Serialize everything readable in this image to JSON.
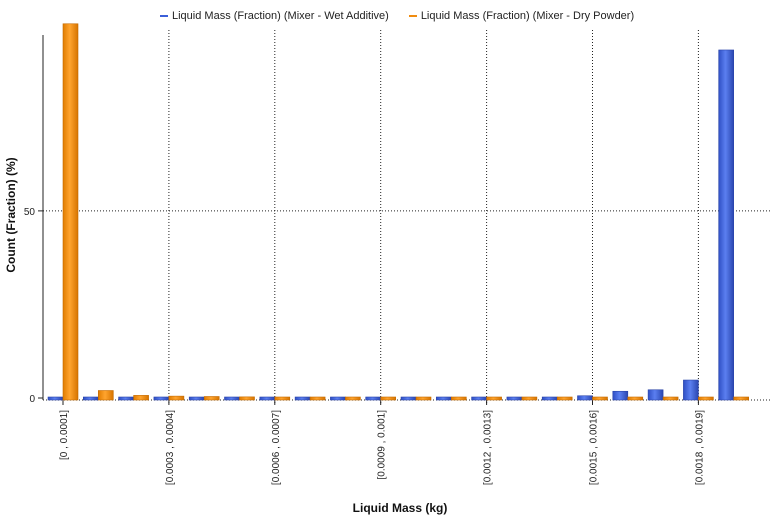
{
  "chart_data": {
    "type": "bar",
    "xlabel": "Liquid Mass (kg)",
    "ylabel": "Count  (Fraction) (%)",
    "ylim": [
      0,
      100
    ],
    "yticks": [
      0,
      50
    ],
    "grid": true,
    "legend_position": "top-center",
    "categories": [
      "[0 , 0.0001]",
      "(0.0001 , 0.0002]",
      "(0.0002 , 0.0003]",
      "[0.0003 , 0.0004]",
      "(0.0004 , 0.0005]",
      "(0.0005 , 0.0006]",
      "[0.0006 , 0.0007]",
      "(0.0007 , 0.0008]",
      "(0.0008 , 0.0009]",
      "[0.0009 , 0.001]",
      "(0.001 , 0.0011]",
      "(0.0011 , 0.0012]",
      "[0.0012 , 0.0013]",
      "(0.0013 , 0.0014]",
      "(0.0014 , 0.0015]",
      "[0.0015 , 0.0016]",
      "(0.0016 , 0.0017]",
      "(0.0017 , 0.0018]",
      "[0.0018 , 0.0019]",
      "(0.0019 , 0.002]"
    ],
    "visible_tick_labels": [
      "[0 , 0.0001]",
      "[0.0003 , 0.0004]",
      "[0.0006 , 0.0007]",
      "[0.0009 , 0.001]",
      "[0.0012 , 0.0013]",
      "[0.0015 , 0.0016]",
      "[0.0018 , 0.0019]"
    ],
    "series": [
      {
        "name": "Liquid Mass (Fraction) (Mixer - Wet Additive)",
        "color": "#3b5fd9",
        "values": [
          0.1,
          0.1,
          0.1,
          0.1,
          0.1,
          0.1,
          0.1,
          0.1,
          0.1,
          0.1,
          0.1,
          0.1,
          0.1,
          0.2,
          0.2,
          0.6,
          1.8,
          2.2,
          4.8,
          93.0
        ]
      },
      {
        "name": "Liquid Mass (Fraction) (Mixer - Dry Powder)",
        "color": "#f08c10",
        "values": [
          100.0,
          2.0,
          0.7,
          0.5,
          0.4,
          0.3,
          0.2,
          0.2,
          0.2,
          0.1,
          0.1,
          0.1,
          0.1,
          0.1,
          0.1,
          0.1,
          0.1,
          0.1,
          0.1,
          0.1
        ]
      }
    ]
  }
}
